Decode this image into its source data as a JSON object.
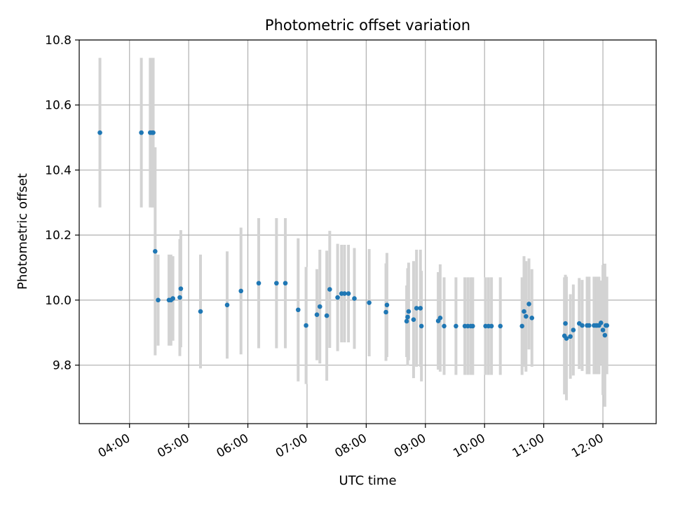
{
  "chart_data": {
    "type": "scatter",
    "title": "Photometric offset variation",
    "xlabel": "UTC time",
    "ylabel": "Photometric offset",
    "grid": true,
    "xlim": [
      "03:09",
      "12:54"
    ],
    "ylim": [
      9.62,
      10.8
    ],
    "x_ticks": [
      "04:00",
      "05:00",
      "06:00",
      "07:00",
      "08:00",
      "09:00",
      "10:00",
      "11:00",
      "12:00"
    ],
    "y_ticks": [
      9.8,
      10.0,
      10.2,
      10.4,
      10.6,
      10.8
    ],
    "y_tick_labels": [
      "9.8",
      "10.0",
      "10.2",
      "10.4",
      "10.6",
      "10.8"
    ],
    "colors": {
      "marker": "#1f77b4",
      "errorbar": "#d3d3d3",
      "grid": "#b0b0b0"
    },
    "series": [
      {
        "x": [
          "03:30",
          "04:12",
          "04:21",
          "04:23",
          "04:24",
          "04:26",
          "04:29",
          "04:40",
          "04:42",
          "04:44",
          "04:51",
          "04:52",
          "05:12",
          "05:39",
          "05:53",
          "06:11",
          "06:29",
          "06:38",
          "06:51",
          "06:59",
          "07:10",
          "07:13",
          "07:20",
          "07:23",
          "07:31",
          "07:35",
          "07:38",
          "07:42",
          "07:48",
          "08:03",
          "08:20",
          "08:21",
          "08:41",
          "08:42",
          "08:43",
          "08:48",
          "08:51",
          "08:55",
          "08:56",
          "09:13",
          "09:15",
          "09:19",
          "09:31",
          "09:40",
          "09:43",
          "09:46",
          "09:48",
          "10:01",
          "10:04",
          "10:07",
          "10:16",
          "10:38",
          "10:40",
          "10:42",
          "10:45",
          "10:48",
          "11:21",
          "11:22",
          "11:23",
          "11:27",
          "11:30",
          "11:36",
          "11:39",
          "11:44",
          "11:46",
          "11:51",
          "11:53",
          "11:54",
          "11:56",
          "11:58",
          "12:00",
          "12:02",
          "12:03",
          "12:04"
        ],
        "y": [
          10.515,
          10.515,
          10.515,
          10.515,
          10.515,
          10.15,
          10.0,
          10.0,
          10.0,
          10.005,
          10.008,
          10.035,
          9.965,
          9.985,
          10.028,
          10.052,
          10.052,
          10.052,
          9.97,
          9.922,
          9.955,
          9.98,
          9.952,
          10.033,
          10.008,
          10.02,
          10.02,
          10.02,
          10.005,
          9.992,
          9.963,
          9.985,
          9.935,
          9.948,
          9.965,
          9.94,
          9.975,
          9.975,
          9.92,
          9.936,
          9.945,
          9.92,
          9.92,
          9.92,
          9.92,
          9.92,
          9.92,
          9.92,
          9.92,
          9.92,
          9.92,
          9.92,
          9.965,
          9.95,
          9.988,
          9.945,
          9.89,
          9.928,
          9.882,
          9.888,
          9.908,
          9.928,
          9.922,
          9.922,
          9.922,
          9.922,
          9.922,
          9.922,
          9.922,
          9.93,
          9.908,
          9.892,
          9.922,
          9.922
        ],
        "yerr": [
          0.23,
          0.23,
          0.23,
          0.23,
          0.23,
          0.32,
          0.14,
          0.14,
          0.14,
          0.13,
          0.18,
          0.18,
          0.175,
          0.165,
          0.195,
          0.2,
          0.2,
          0.2,
          0.22,
          0.18,
          0.14,
          0.175,
          0.2,
          0.18,
          0.165,
          0.15,
          0.15,
          0.15,
          0.155,
          0.165,
          0.15,
          0.16,
          0.11,
          0.15,
          0.15,
          0.18,
          0.18,
          0.18,
          0.17,
          0.15,
          0.165,
          0.15,
          0.15,
          0.15,
          0.15,
          0.15,
          0.15,
          0.15,
          0.15,
          0.15,
          0.15,
          0.15,
          0.17,
          0.17,
          0.14,
          0.15,
          0.18,
          0.15,
          0.19,
          0.13,
          0.14,
          0.14,
          0.14,
          0.15,
          0.15,
          0.15,
          0.15,
          0.15,
          0.15,
          0.13,
          0.2,
          0.22,
          0.15,
          0.15
        ]
      }
    ]
  }
}
